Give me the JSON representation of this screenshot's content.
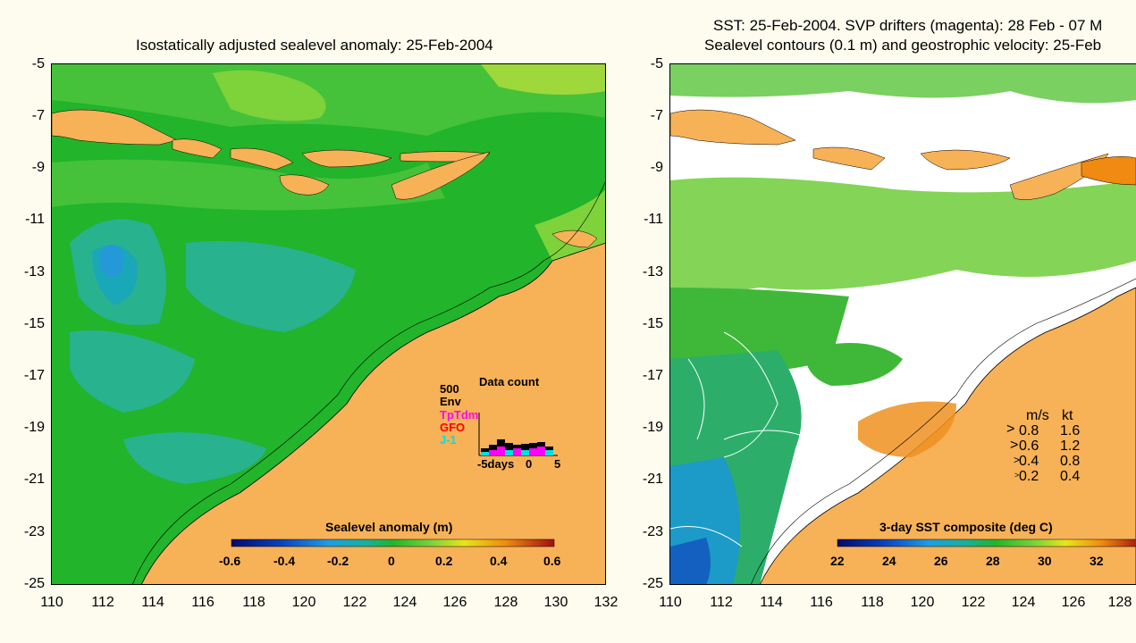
{
  "left_panel": {
    "title": "Isostatically adjusted sealevel anomaly: 25-Feb-2004",
    "y_ticks": [
      "-5",
      "-7",
      "-9",
      "-11",
      "-13",
      "-15",
      "-17",
      "-19",
      "-21",
      "-23",
      "-25"
    ],
    "x_ticks": [
      "110",
      "112",
      "114",
      "116",
      "118",
      "120",
      "122",
      "124",
      "126",
      "128",
      "130",
      "132"
    ],
    "colorbar": {
      "label": "Sealevel anomaly (m)",
      "ticks": [
        "-0.6",
        "-0.4",
        "-0.2",
        "0",
        "0.2",
        "0.4",
        "0.6"
      ]
    },
    "data_count": {
      "title": "Data count",
      "scale_label": "500",
      "legend": [
        {
          "label": "Env",
          "color": "#000000"
        },
        {
          "label": "TpTdm",
          "color": "#ff00ff"
        },
        {
          "label": "GFO",
          "color": "#ff0000"
        },
        {
          "label": "J-1",
          "color": "#00e0e0"
        }
      ],
      "x_label": "-5days",
      "x_ticks": [
        "0",
        "5"
      ]
    }
  },
  "right_panel": {
    "title_line1": "SST: 25-Feb-2004. SVP drifters (magenta): 28 Feb - 07 M",
    "title_line2": "Sealevel contours (0.1 m) and geostrophic velocity: 25-Feb",
    "y_ticks": [
      "-5",
      "-7",
      "-9",
      "-11",
      "-13",
      "-15",
      "-17",
      "-19",
      "-21",
      "-23",
      "-25"
    ],
    "x_ticks": [
      "110",
      "112",
      "114",
      "116",
      "118",
      "120",
      "122",
      "124",
      "126",
      "128"
    ],
    "colorbar": {
      "label": "3-day SST composite (deg C)",
      "ticks": [
        "22",
        "24",
        "26",
        "28",
        "30",
        "32"
      ]
    },
    "velocity_legend": {
      "header_ms": "m/s",
      "header_kt": "kt",
      "rows": [
        {
          "ms": "0.8",
          "kt": "1.6"
        },
        {
          "ms": "0.6",
          "kt": "1.2"
        },
        {
          "ms": "0.4",
          "kt": "0.8"
        },
        {
          "ms": "0.2",
          "kt": "0.4"
        }
      ]
    }
  },
  "colors": {
    "land": "#f7b157",
    "ocean_green": "#22b42a",
    "background": "#fdfcef"
  }
}
